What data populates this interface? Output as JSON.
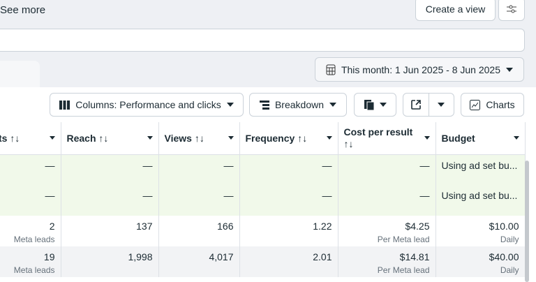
{
  "top": {
    "see_more": "See more",
    "create_view": "Create a view"
  },
  "date_range": "This month: 1 Jun 2025 - 8 Jun 2025",
  "toolbar": {
    "columns": "Columns: Performance and clicks",
    "breakdown": "Breakdown",
    "charts": "Charts"
  },
  "columns": [
    "ts ↑↓",
    "Reach ↑↓",
    "Views ↑↓",
    "Frequency ↑↓",
    "Cost per result ↑↓",
    "Budget"
  ],
  "rows": [
    {
      "results": "—",
      "reach": "—",
      "views": "—",
      "frequency": "—",
      "cost": "—",
      "budget": "Using ad set bu..."
    },
    {
      "results": "—",
      "reach": "—",
      "views": "—",
      "frequency": "—",
      "cost": "—",
      "budget": "Using ad set bu..."
    },
    {
      "results": "2",
      "results_sub": "Meta leads",
      "reach": "137",
      "views": "166",
      "frequency": "1.22",
      "cost": "$4.25",
      "cost_sub": "Per Meta lead",
      "budget": "$10.00",
      "budget_sub": "Daily"
    },
    {
      "results": "19",
      "results_sub": "Meta leads",
      "reach": "1,998",
      "views": "4,017",
      "frequency": "2.01",
      "cost": "$14.81",
      "cost_sub": "Per Meta lead",
      "budget": "$40.00",
      "budget_sub": "Daily"
    }
  ]
}
